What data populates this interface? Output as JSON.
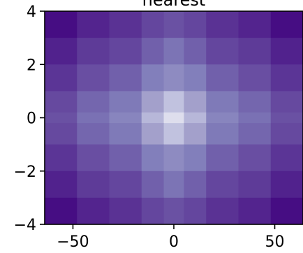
{
  "chart_data": {
    "type": "heatmap",
    "title": "nearest",
    "xlabel": "",
    "ylabel": "",
    "x_edges": [
      -64,
      -48,
      -32,
      -16,
      -5,
      5,
      16,
      32,
      48,
      64
    ],
    "y_edges": [
      4,
      3,
      2,
      1,
      0.2,
      -0.2,
      -1,
      -2,
      -3,
      -4
    ],
    "xlim": [
      -64,
      64
    ],
    "ylim": [
      -4,
      4
    ],
    "x_ticks": [
      {
        "value": -50,
        "label": "−50"
      },
      {
        "value": 0,
        "label": "0"
      },
      {
        "value": 50,
        "label": "50"
      }
    ],
    "y_ticks": [
      {
        "value": 4,
        "label": "4"
      },
      {
        "value": 2,
        "label": "2"
      },
      {
        "value": 0,
        "label": "0"
      },
      {
        "value": -2,
        "label": "−2"
      },
      {
        "value": -4,
        "label": "−4"
      }
    ],
    "colormap": "Purples_r",
    "value_range": [
      0,
      1
    ],
    "values": [
      [
        0.05,
        0.14,
        0.19,
        0.26,
        0.3,
        0.26,
        0.19,
        0.14,
        0.05
      ],
      [
        0.13,
        0.22,
        0.26,
        0.35,
        0.42,
        0.35,
        0.26,
        0.22,
        0.13
      ],
      [
        0.2,
        0.29,
        0.35,
        0.46,
        0.52,
        0.46,
        0.35,
        0.29,
        0.2
      ],
      [
        0.27,
        0.37,
        0.44,
        0.62,
        0.74,
        0.62,
        0.44,
        0.37,
        0.27
      ],
      [
        0.3,
        0.41,
        0.49,
        0.7,
        0.86,
        0.7,
        0.49,
        0.41,
        0.3
      ],
      [
        0.27,
        0.37,
        0.44,
        0.62,
        0.74,
        0.62,
        0.44,
        0.37,
        0.27
      ],
      [
        0.2,
        0.29,
        0.35,
        0.46,
        0.52,
        0.46,
        0.35,
        0.29,
        0.2
      ],
      [
        0.13,
        0.22,
        0.26,
        0.35,
        0.42,
        0.35,
        0.26,
        0.22,
        0.13
      ],
      [
        0.05,
        0.14,
        0.19,
        0.26,
        0.3,
        0.26,
        0.19,
        0.14,
        0.05
      ]
    ],
    "grid": false,
    "legend": "none"
  }
}
